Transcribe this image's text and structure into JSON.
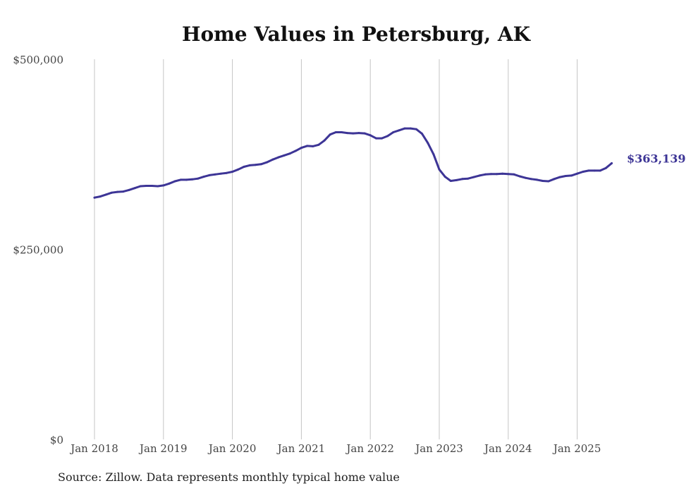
{
  "chart_data": {
    "type": "line",
    "title": "Home Values in Petersburg, AK",
    "xlabel": "",
    "ylabel": "",
    "ylim": [
      0,
      500000
    ],
    "y_ticks": [
      {
        "value": 0,
        "label": "$0"
      },
      {
        "value": 250000,
        "label": "$250,000"
      },
      {
        "value": 500000,
        "label": "$500,000"
      }
    ],
    "x_ticks": [
      {
        "index": 0,
        "label": "Jan 2018"
      },
      {
        "index": 12,
        "label": "Jan 2019"
      },
      {
        "index": 24,
        "label": "Jan 2020"
      },
      {
        "index": 36,
        "label": "Jan 2021"
      },
      {
        "index": 48,
        "label": "Jan 2022"
      },
      {
        "index": 60,
        "label": "Jan 2023"
      },
      {
        "index": 72,
        "label": "Jan 2024"
      },
      {
        "index": 84,
        "label": "Jan 2025"
      }
    ],
    "grid": "vertical",
    "series": [
      {
        "name": "Typical home value",
        "color": "#3d3596",
        "end_label": "$363,139",
        "values": [
          318000,
          319500,
          322000,
          324500,
          325500,
          326000,
          328000,
          330500,
          333000,
          333500,
          333500,
          333000,
          334000,
          336500,
          339500,
          341500,
          341500,
          342000,
          343000,
          345500,
          347500,
          348500,
          349500,
          350500,
          352000,
          355000,
          358500,
          360500,
          361000,
          362000,
          364500,
          368000,
          371000,
          373500,
          376000,
          379500,
          383500,
          386000,
          385500,
          387500,
          393000,
          401000,
          404000,
          404000,
          403000,
          402500,
          403000,
          402500,
          400000,
          396000,
          396000,
          399000,
          404000,
          406500,
          409000,
          409000,
          408000,
          402000,
          390000,
          375000,
          355000,
          345500,
          340000,
          341000,
          342500,
          343000,
          345000,
          347000,
          348500,
          349000,
          349000,
          349500,
          349000,
          348500,
          346000,
          344000,
          342500,
          341500,
          340000,
          339500,
          342500,
          345000,
          346500,
          347000,
          349500,
          352000,
          353500,
          353500,
          353500,
          357000,
          363139
        ]
      }
    ]
  },
  "footer": {
    "source": "Source: Zillow. Data represents monthly typical home value"
  }
}
